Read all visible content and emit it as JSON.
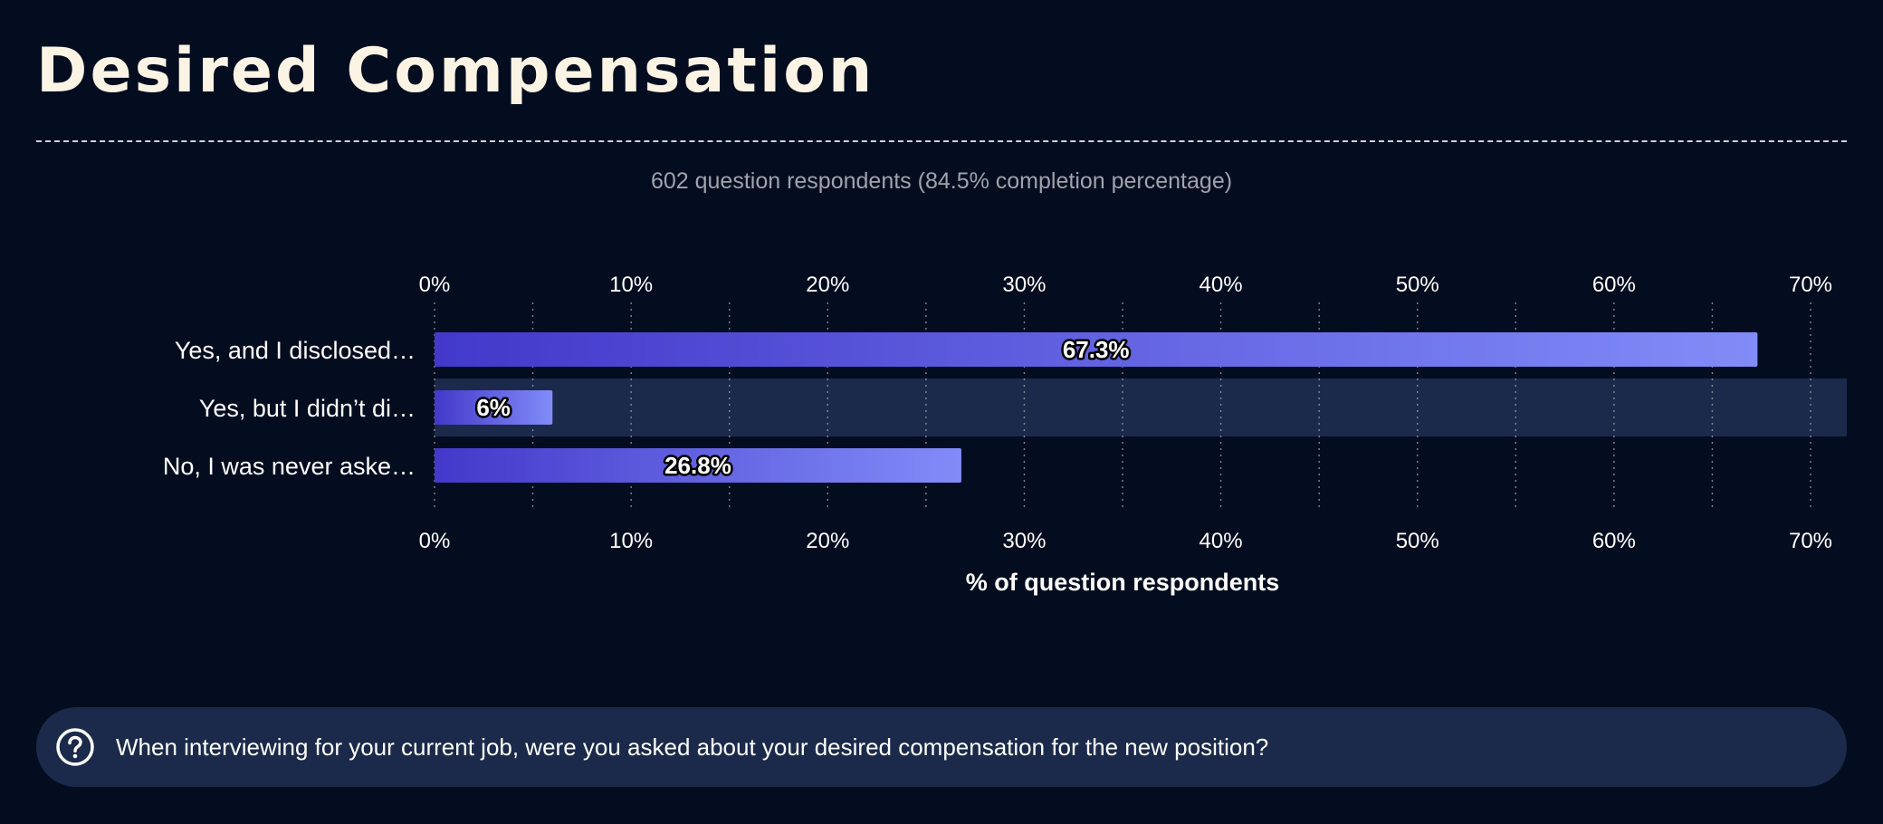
{
  "page": {
    "title": "Desired Compensation",
    "subtitle": "602 question respondents (84.5% completion percentage)"
  },
  "question": {
    "icon": "question-circle-icon",
    "text": "When interviewing for your current job, were you asked about your desired compensation for the new position?"
  },
  "chart_data": {
    "type": "bar",
    "orientation": "horizontal",
    "categories": [
      "Yes, and I disclosed…",
      "Yes, but I didn’t di…",
      "No, I was never aske…"
    ],
    "values": [
      67.3,
      6,
      26.8
    ],
    "value_labels": [
      "67.3%",
      "6%",
      "26.8%"
    ],
    "xlabel": "% of question respondents",
    "ylabel": "",
    "xlim": [
      0,
      72
    ],
    "ticks": [
      0,
      10,
      20,
      30,
      40,
      50,
      60,
      70
    ],
    "tick_labels": [
      "0%",
      "10%",
      "20%",
      "30%",
      "40%",
      "50%",
      "60%",
      "70%"
    ],
    "minor_grid": [
      5,
      15,
      25,
      35,
      45,
      55,
      65
    ],
    "grid": true,
    "highlighted_category_index": 1,
    "colors": {
      "bar_start": "#4338ca",
      "bar_end": "#818cf8",
      "highlight_band": "#1b2a4a",
      "grid": "#9ea3ad",
      "text": "#ffffff"
    }
  }
}
